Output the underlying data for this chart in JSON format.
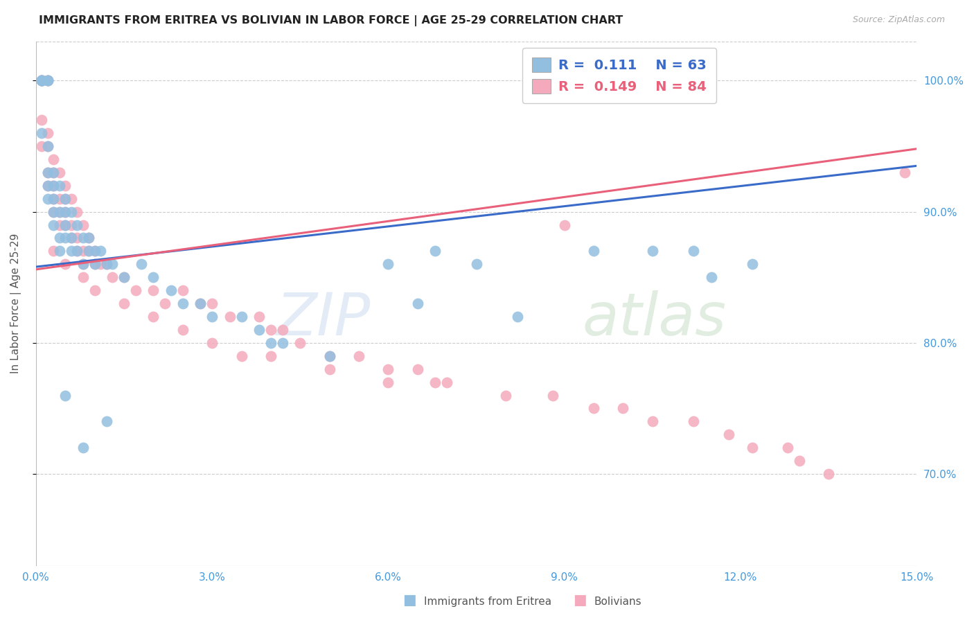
{
  "title": "IMMIGRANTS FROM ERITREA VS BOLIVIAN IN LABOR FORCE | AGE 25-29 CORRELATION CHART",
  "source": "Source: ZipAtlas.com",
  "ylabel": "In Labor Force | Age 25-29",
  "xmin": 0.0,
  "xmax": 0.15,
  "ymin": 0.63,
  "ymax": 1.03,
  "yticks": [
    0.7,
    0.8,
    0.9,
    1.0
  ],
  "ytick_labels": [
    "70.0%",
    "80.0%",
    "90.0%",
    "100.0%"
  ],
  "xticks": [
    0.0,
    0.03,
    0.06,
    0.09,
    0.12,
    0.15
  ],
  "xtick_labels": [
    "0.0%",
    "3.0%",
    "6.0%",
    "9.0%",
    "12.0%",
    "15.0%"
  ],
  "blue_color": "#92BFE0",
  "pink_color": "#F4AABC",
  "blue_line_color": "#3B6BC8",
  "pink_line_color": "#E8607A",
  "legend_blue_R": "0.111",
  "legend_blue_N": "63",
  "legend_pink_R": "0.149",
  "legend_pink_N": "84",
  "axis_color": "#4499DD",
  "watermark_zip": "ZIP",
  "watermark_atlas": "atlas",
  "blue_scatter_x": [
    0.001,
    0.001,
    0.001,
    0.001,
    0.001,
    0.002,
    0.002,
    0.002,
    0.002,
    0.002,
    0.002,
    0.003,
    0.003,
    0.003,
    0.003,
    0.003,
    0.004,
    0.004,
    0.004,
    0.004,
    0.005,
    0.005,
    0.005,
    0.005,
    0.006,
    0.006,
    0.006,
    0.007,
    0.007,
    0.008,
    0.008,
    0.009,
    0.009,
    0.01,
    0.01,
    0.011,
    0.012,
    0.013,
    0.015,
    0.018,
    0.02,
    0.023,
    0.025,
    0.028,
    0.03,
    0.035,
    0.038,
    0.04,
    0.042,
    0.05,
    0.06,
    0.065,
    0.068,
    0.075,
    0.082,
    0.095,
    0.105,
    0.112,
    0.115,
    0.122,
    0.005,
    0.008,
    0.012
  ],
  "blue_scatter_y": [
    1.0,
    1.0,
    1.0,
    1.0,
    0.96,
    1.0,
    1.0,
    0.95,
    0.93,
    0.92,
    0.91,
    0.93,
    0.92,
    0.91,
    0.9,
    0.89,
    0.92,
    0.9,
    0.88,
    0.87,
    0.91,
    0.9,
    0.89,
    0.88,
    0.9,
    0.88,
    0.87,
    0.89,
    0.87,
    0.88,
    0.86,
    0.88,
    0.87,
    0.87,
    0.86,
    0.87,
    0.86,
    0.86,
    0.85,
    0.86,
    0.85,
    0.84,
    0.83,
    0.83,
    0.82,
    0.82,
    0.81,
    0.8,
    0.8,
    0.79,
    0.86,
    0.83,
    0.87,
    0.86,
    0.82,
    0.87,
    0.87,
    0.87,
    0.85,
    0.86,
    0.76,
    0.72,
    0.74
  ],
  "pink_scatter_x": [
    0.001,
    0.001,
    0.001,
    0.001,
    0.001,
    0.001,
    0.002,
    0.002,
    0.002,
    0.002,
    0.002,
    0.002,
    0.003,
    0.003,
    0.003,
    0.003,
    0.003,
    0.004,
    0.004,
    0.004,
    0.004,
    0.005,
    0.005,
    0.005,
    0.005,
    0.006,
    0.006,
    0.006,
    0.007,
    0.007,
    0.007,
    0.008,
    0.008,
    0.008,
    0.009,
    0.009,
    0.01,
    0.01,
    0.011,
    0.012,
    0.013,
    0.015,
    0.017,
    0.02,
    0.022,
    0.025,
    0.028,
    0.03,
    0.033,
    0.038,
    0.04,
    0.042,
    0.045,
    0.05,
    0.055,
    0.06,
    0.065,
    0.068,
    0.07,
    0.08,
    0.088,
    0.095,
    0.1,
    0.105,
    0.112,
    0.118,
    0.122,
    0.128,
    0.13,
    0.135,
    0.003,
    0.005,
    0.008,
    0.01,
    0.015,
    0.02,
    0.025,
    0.03,
    0.035,
    0.04,
    0.05,
    0.06,
    0.09,
    0.148
  ],
  "pink_scatter_y": [
    1.0,
    1.0,
    1.0,
    1.0,
    0.97,
    0.95,
    1.0,
    1.0,
    0.96,
    0.95,
    0.93,
    0.92,
    0.94,
    0.93,
    0.92,
    0.91,
    0.9,
    0.93,
    0.91,
    0.9,
    0.89,
    0.92,
    0.91,
    0.9,
    0.89,
    0.91,
    0.89,
    0.88,
    0.9,
    0.88,
    0.87,
    0.89,
    0.87,
    0.86,
    0.88,
    0.87,
    0.87,
    0.86,
    0.86,
    0.86,
    0.85,
    0.85,
    0.84,
    0.84,
    0.83,
    0.84,
    0.83,
    0.83,
    0.82,
    0.82,
    0.81,
    0.81,
    0.8,
    0.79,
    0.79,
    0.78,
    0.78,
    0.77,
    0.77,
    0.76,
    0.76,
    0.75,
    0.75,
    0.74,
    0.74,
    0.73,
    0.72,
    0.72,
    0.71,
    0.7,
    0.87,
    0.86,
    0.85,
    0.84,
    0.83,
    0.82,
    0.81,
    0.8,
    0.79,
    0.79,
    0.78,
    0.77,
    0.89,
    0.93
  ],
  "blue_line_x0": 0.0,
  "blue_line_x1": 0.15,
  "blue_line_y0": 0.858,
  "blue_line_y1": 0.935,
  "pink_line_x0": 0.0,
  "pink_line_x1": 0.15,
  "pink_line_y0": 0.856,
  "pink_line_y1": 0.948
}
